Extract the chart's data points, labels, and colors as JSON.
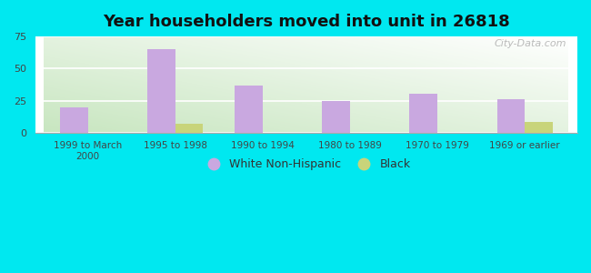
{
  "title": "Year householders moved into unit in 26818",
  "categories": [
    "1999 to March\n2000",
    "1995 to 1998",
    "1990 to 1994",
    "1980 to 1989",
    "1970 to 1979",
    "1969 or earlier"
  ],
  "white_values": [
    20,
    65,
    37,
    25,
    30,
    26
  ],
  "black_values": [
    0,
    7,
    0,
    0,
    0,
    8
  ],
  "white_color": "#c9a8e0",
  "black_color": "#c8d47a",
  "bg_outer": "#00e8f0",
  "ylim": [
    0,
    75
  ],
  "yticks": [
    0,
    25,
    50,
    75
  ],
  "bar_width": 0.32,
  "legend_labels": [
    "White Non-Hispanic",
    "Black"
  ],
  "watermark": "City-Data.com"
}
